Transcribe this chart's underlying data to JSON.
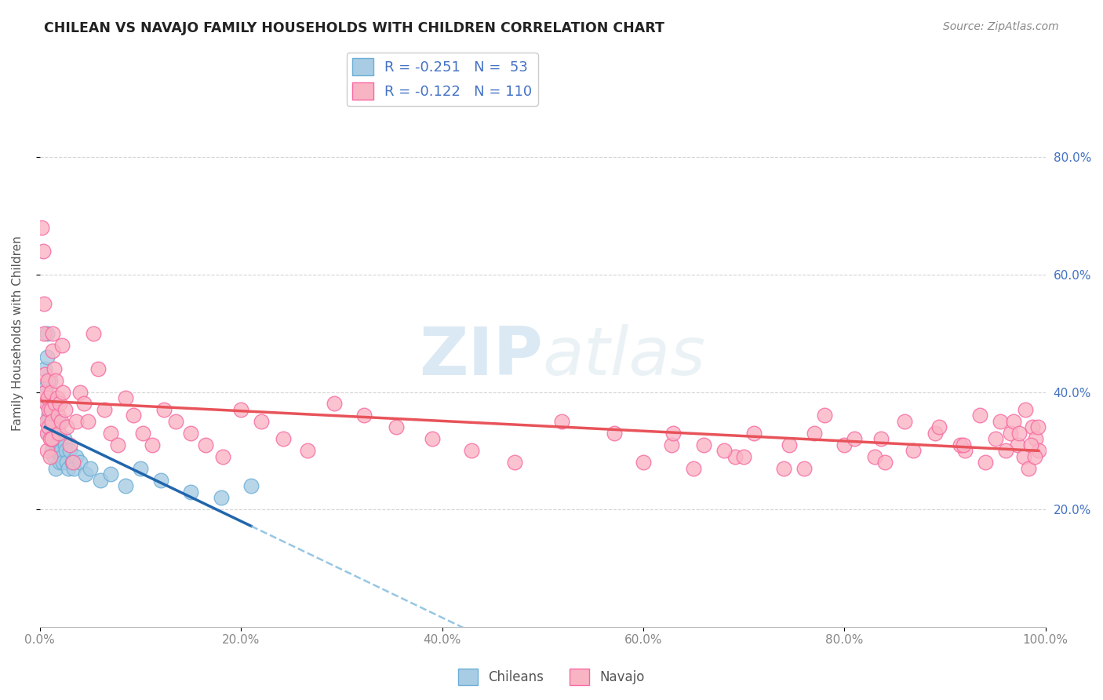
{
  "title": "CHILEAN VS NAVAJO FAMILY HOUSEHOLDS WITH CHILDREN CORRELATION CHART",
  "source": "Source: ZipAtlas.com",
  "ylabel": "Family Households with Children",
  "watermark_zip": "ZIP",
  "watermark_atlas": "atlas",
  "legend_chilean_R": -0.251,
  "legend_chilean_N": 53,
  "legend_navajo_R": -0.122,
  "legend_navajo_N": 110,
  "xlim": [
    0.0,
    1.0
  ],
  "ylim": [
    0.0,
    1.0
  ],
  "xticks": [
    0.0,
    0.2,
    0.4,
    0.6,
    0.8,
    1.0
  ],
  "yticks": [
    0.2,
    0.4,
    0.6,
    0.8
  ],
  "xticklabels": [
    "0.0%",
    "20.0%",
    "40.0%",
    "60.0%",
    "80.0%",
    "100.0%"
  ],
  "yticklabels_right": [
    "20.0%",
    "40.0%",
    "60.0%",
    "80.0%"
  ],
  "chilean_scatter_face": "#a8cce4",
  "chilean_scatter_edge": "#6baed6",
  "navajo_scatter_face": "#f9b4c4",
  "navajo_scatter_edge": "#f768a1",
  "trend_chilean_solid": "#2166ac",
  "trend_chilean_dash": "#6baed6",
  "trend_navajo": "#e8535a",
  "background_color": "#ffffff",
  "grid_color": "#d0d0d0",
  "chilean_x": [
    0.005,
    0.006,
    0.007,
    0.007,
    0.008,
    0.008,
    0.009,
    0.009,
    0.01,
    0.01,
    0.011,
    0.011,
    0.012,
    0.012,
    0.013,
    0.013,
    0.014,
    0.014,
    0.015,
    0.015,
    0.016,
    0.016,
    0.017,
    0.017,
    0.018,
    0.018,
    0.019,
    0.019,
    0.02,
    0.02,
    0.021,
    0.022,
    0.023,
    0.024,
    0.025,
    0.026,
    0.027,
    0.028,
    0.03,
    0.032,
    0.034,
    0.036,
    0.04,
    0.045,
    0.05,
    0.06,
    0.07,
    0.085,
    0.1,
    0.12,
    0.15,
    0.18,
    0.21
  ],
  "chilean_y": [
    0.44,
    0.41,
    0.5,
    0.46,
    0.38,
    0.35,
    0.36,
    0.33,
    0.42,
    0.39,
    0.37,
    0.34,
    0.33,
    0.3,
    0.37,
    0.34,
    0.32,
    0.29,
    0.35,
    0.32,
    0.3,
    0.27,
    0.34,
    0.31,
    0.33,
    0.3,
    0.35,
    0.32,
    0.31,
    0.28,
    0.3,
    0.29,
    0.28,
    0.32,
    0.31,
    0.3,
    0.28,
    0.27,
    0.3,
    0.28,
    0.27,
    0.29,
    0.28,
    0.26,
    0.27,
    0.25,
    0.26,
    0.24,
    0.27,
    0.25,
    0.23,
    0.22,
    0.24
  ],
  "navajo_x": [
    0.002,
    0.003,
    0.004,
    0.004,
    0.005,
    0.005,
    0.006,
    0.006,
    0.007,
    0.007,
    0.008,
    0.008,
    0.009,
    0.009,
    0.01,
    0.01,
    0.011,
    0.011,
    0.012,
    0.012,
    0.013,
    0.013,
    0.014,
    0.015,
    0.016,
    0.017,
    0.018,
    0.019,
    0.02,
    0.021,
    0.022,
    0.023,
    0.025,
    0.027,
    0.03,
    0.033,
    0.036,
    0.04,
    0.044,
    0.048,
    0.053,
    0.058,
    0.064,
    0.07,
    0.077,
    0.085,
    0.093,
    0.102,
    0.112,
    0.123,
    0.135,
    0.15,
    0.165,
    0.182,
    0.2,
    0.22,
    0.242,
    0.266,
    0.293,
    0.322,
    0.354,
    0.39,
    0.429,
    0.472,
    0.519,
    0.571,
    0.628,
    0.691,
    0.76,
    0.836,
    0.92,
    0.94,
    0.955,
    0.965,
    0.972,
    0.978,
    0.983,
    0.987,
    0.99,
    0.993,
    0.6,
    0.63,
    0.66,
    0.7,
    0.74,
    0.77,
    0.8,
    0.83,
    0.86,
    0.89,
    0.915,
    0.935,
    0.95,
    0.96,
    0.968,
    0.974,
    0.98,
    0.985,
    0.989,
    0.992,
    0.65,
    0.68,
    0.71,
    0.745,
    0.78,
    0.81,
    0.84,
    0.868,
    0.894,
    0.918
  ],
  "navajo_y": [
    0.68,
    0.64,
    0.55,
    0.5,
    0.43,
    0.4,
    0.38,
    0.35,
    0.33,
    0.3,
    0.42,
    0.39,
    0.37,
    0.34,
    0.32,
    0.29,
    0.4,
    0.37,
    0.35,
    0.32,
    0.5,
    0.47,
    0.44,
    0.38,
    0.42,
    0.39,
    0.36,
    0.33,
    0.38,
    0.35,
    0.48,
    0.4,
    0.37,
    0.34,
    0.31,
    0.28,
    0.35,
    0.4,
    0.38,
    0.35,
    0.5,
    0.44,
    0.37,
    0.33,
    0.31,
    0.39,
    0.36,
    0.33,
    0.31,
    0.37,
    0.35,
    0.33,
    0.31,
    0.29,
    0.37,
    0.35,
    0.32,
    0.3,
    0.38,
    0.36,
    0.34,
    0.32,
    0.3,
    0.28,
    0.35,
    0.33,
    0.31,
    0.29,
    0.27,
    0.32,
    0.3,
    0.28,
    0.35,
    0.33,
    0.31,
    0.29,
    0.27,
    0.34,
    0.32,
    0.3,
    0.28,
    0.33,
    0.31,
    0.29,
    0.27,
    0.33,
    0.31,
    0.29,
    0.35,
    0.33,
    0.31,
    0.36,
    0.32,
    0.3,
    0.35,
    0.33,
    0.37,
    0.31,
    0.29,
    0.34,
    0.27,
    0.3,
    0.33,
    0.31,
    0.36,
    0.32,
    0.28,
    0.3,
    0.34,
    0.31
  ]
}
